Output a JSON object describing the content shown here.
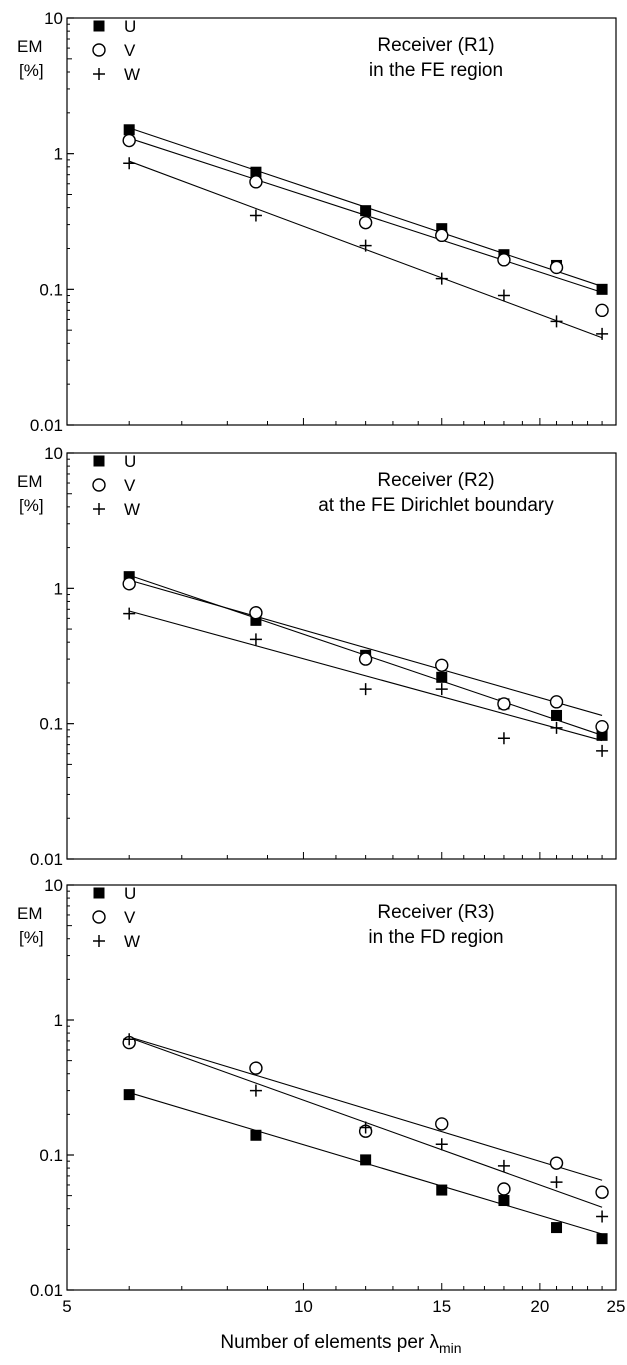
{
  "chart_data": [
    {
      "type": "scatter",
      "title": "Receiver (R1)",
      "subtitle": "in the FE region",
      "ylabel": "EM",
      "yunit": "[%]",
      "xlabel": "",
      "xscale": "log",
      "yscale": "log",
      "xlim": [
        5,
        25
      ],
      "ylim": [
        0.01,
        10
      ],
      "ytick_labels": [
        "0.01",
        "0.1",
        "1",
        "10"
      ],
      "legend_position": "top-left",
      "series": [
        {
          "name": "U",
          "marker": "filled-square",
          "x": [
            6.0,
            8.7,
            12.0,
            15.0,
            18.0,
            21.0,
            24.0
          ],
          "y": [
            1.5,
            0.73,
            0.38,
            0.28,
            0.18,
            0.15,
            0.1
          ],
          "fit": [
            1.55,
            0.105
          ]
        },
        {
          "name": "V",
          "marker": "open-circle",
          "x": [
            6.0,
            8.7,
            12.0,
            15.0,
            18.0,
            21.0,
            24.0
          ],
          "y": [
            1.25,
            0.62,
            0.31,
            0.25,
            0.165,
            0.145,
            0.07
          ],
          "fit": [
            1.3,
            0.095
          ]
        },
        {
          "name": "W",
          "marker": "plus",
          "x": [
            6.0,
            8.7,
            12.0,
            15.0,
            18.0,
            21.0,
            24.0
          ],
          "y": [
            0.85,
            0.35,
            0.21,
            0.12,
            0.09,
            0.058,
            0.047
          ],
          "fit": [
            0.88,
            0.044
          ]
        }
      ]
    },
    {
      "type": "scatter",
      "title": "Receiver (R2)",
      "subtitle": "at the FE Dirichlet boundary",
      "ylabel": "EM",
      "yunit": "[%]",
      "xlabel": "",
      "xscale": "log",
      "yscale": "log",
      "xlim": [
        5,
        25
      ],
      "ylim": [
        0.01,
        10
      ],
      "ytick_labels": [
        "0.01",
        "0.1",
        "1",
        "10"
      ],
      "legend_position": "top-left",
      "series": [
        {
          "name": "U",
          "marker": "filled-square",
          "x": [
            6.0,
            8.7,
            12.0,
            15.0,
            18.0,
            21.0,
            24.0
          ],
          "y": [
            1.22,
            0.58,
            0.32,
            0.22,
            0.14,
            0.115,
            0.082
          ],
          "fit": [
            1.25,
            0.082
          ]
        },
        {
          "name": "V",
          "marker": "open-circle",
          "x": [
            6.0,
            8.7,
            12.0,
            15.0,
            18.0,
            21.0,
            24.0
          ],
          "y": [
            1.08,
            0.66,
            0.3,
            0.27,
            0.14,
            0.145,
            0.095
          ],
          "fit": [
            1.15,
            0.115
          ]
        },
        {
          "name": "W",
          "marker": "plus",
          "x": [
            6.0,
            8.7,
            12.0,
            15.0,
            18.0,
            21.0,
            24.0
          ],
          "y": [
            0.65,
            0.42,
            0.18,
            0.18,
            0.078,
            0.093,
            0.063
          ],
          "fit": [
            0.68,
            0.075
          ]
        }
      ]
    },
    {
      "type": "scatter",
      "title": "Receiver (R3)",
      "subtitle": "in the FD region",
      "ylabel": "EM",
      "yunit": "[%]",
      "xlabel": "Number of elements per λ",
      "xlabel_subscript": "min",
      "xscale": "log",
      "yscale": "log",
      "xlim": [
        5,
        25
      ],
      "ylim": [
        0.01,
        10
      ],
      "xtick_labels": [
        "5",
        "10",
        "15",
        "20",
        "25"
      ],
      "ytick_labels": [
        "0.01",
        "0.1",
        "1",
        "10"
      ],
      "legend_position": "top-left",
      "series": [
        {
          "name": "U",
          "marker": "filled-square",
          "x": [
            6.0,
            8.7,
            12.0,
            15.0,
            18.0,
            21.0,
            24.0
          ],
          "y": [
            0.28,
            0.14,
            0.092,
            0.055,
            0.046,
            0.029,
            0.024
          ],
          "fit": [
            0.29,
            0.026
          ]
        },
        {
          "name": "V",
          "marker": "open-circle",
          "x": [
            6.0,
            8.7,
            12.0,
            15.0,
            18.0,
            21.0,
            24.0
          ],
          "y": [
            0.68,
            0.44,
            0.15,
            0.17,
            0.056,
            0.087,
            0.053
          ],
          "fit": [
            0.75,
            0.065
          ]
        },
        {
          "name": "W",
          "marker": "plus",
          "x": [
            6.0,
            8.7,
            12.0,
            15.0,
            18.0,
            21.0,
            24.0
          ],
          "y": [
            0.72,
            0.3,
            0.16,
            0.12,
            0.083,
            0.063,
            0.035
          ],
          "fit": [
            0.74,
            0.041
          ]
        }
      ]
    }
  ]
}
